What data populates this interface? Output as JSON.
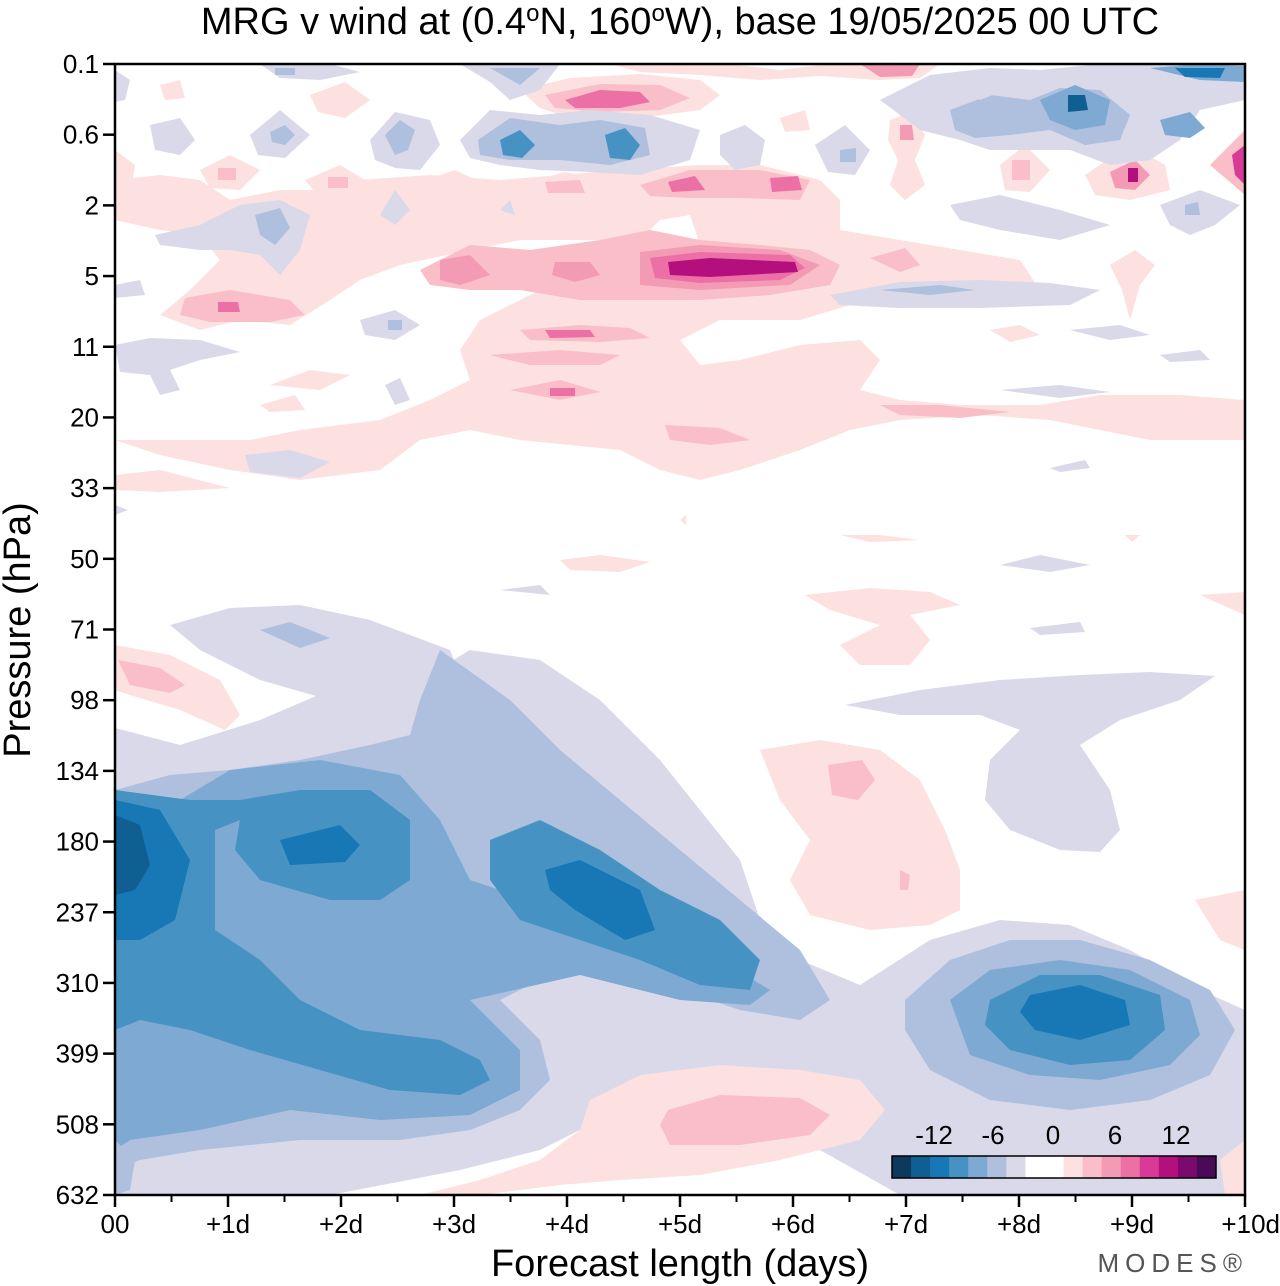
{
  "chart_data": {
    "type": "contour",
    "title": "MRG v wind at (0.4°N, 160°W),  base 19/05/2025  00 UTC",
    "title_parts": {
      "prefix": "MRG v wind at (0.4",
      "deg1": "o",
      "mid": "N, 160",
      "deg2": "o",
      "suffix": "W),  base 19/05/2025  00 UTC"
    },
    "xlabel": "Forecast length (days)",
    "ylabel": "Pressure (hPa)",
    "x_ticks": [
      "00",
      "+1d",
      "+2d",
      "+3d",
      "+4d",
      "+5d",
      "+6d",
      "+7d",
      "+8d",
      "+9d",
      "+10d"
    ],
    "y_ticks": [
      "0.1",
      "0.6",
      "2",
      "5",
      "11",
      "20",
      "33",
      "50",
      "71",
      "98",
      "134",
      "180",
      "237",
      "310",
      "399",
      "508",
      "632"
    ],
    "xlim": [
      0,
      10
    ],
    "colorbar": {
      "tick_labels": [
        "-12",
        "-6",
        "0",
        "6",
        "12"
      ],
      "colors": [
        "#0d3a5c",
        "#105f93",
        "#1778b5",
        "#4592c3",
        "#7ea9d2",
        "#aec0dd",
        "#d9d9ea",
        "#ffffff",
        "#ffffff",
        "#fde0e0",
        "#f9bec8",
        "#f39bb4",
        "#ec6fa6",
        "#d93a98",
        "#b3107e",
        "#7a0a6e",
        "#4a0a58"
      ]
    },
    "features": [
      {
        "sign": "negative",
        "x": 0.2,
        "p": "180-237",
        "level": "-12"
      },
      {
        "sign": "negative",
        "x": 1.7,
        "p": "180",
        "level": "-10"
      },
      {
        "sign": "negative",
        "x": 3.5,
        "p": "399",
        "level": "-8"
      },
      {
        "sign": "negative",
        "x": 4.5,
        "p": "237",
        "level": "-8"
      },
      {
        "sign": "negative",
        "x": 8.4,
        "p": "310-399",
        "level": "-10"
      },
      {
        "sign": "positive",
        "x": 5.5,
        "p": "5",
        "level": "12"
      },
      {
        "sign": "positive",
        "x": 5.6,
        "p": "508",
        "level": "4"
      }
    ]
  },
  "branding": "MODES®"
}
